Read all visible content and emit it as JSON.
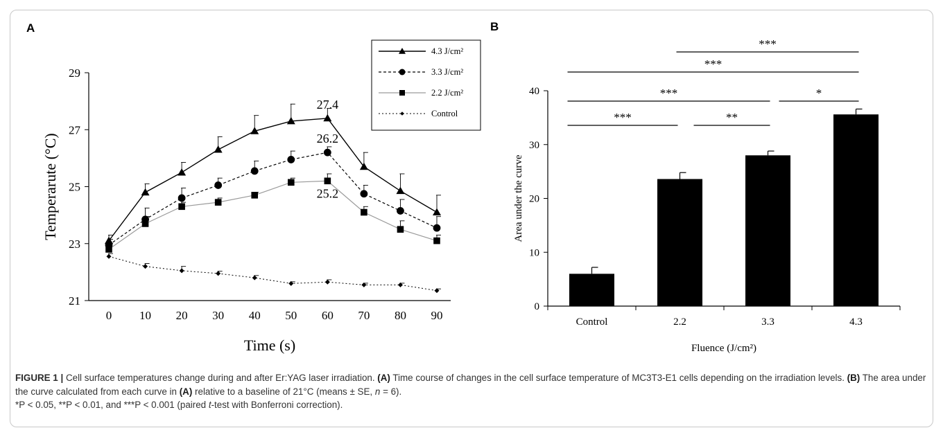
{
  "caption": {
    "label": "FIGURE 1 |",
    "line1": "Cell surface temperatures change during and after Er:YAG laser irradiation.",
    "a_ref": "(A)",
    "line1b": "Time course of changes in the cell surface temperature of MC3T3-E1",
    "line2a": "cells depending on the irradiation levels.",
    "b_ref": "(B)",
    "line2b": "The area under the curve calculated from each curve in",
    "a_ref2": "(A)",
    "line2c": "relative to a baseline of 21°C (means ± SE,",
    "n_label": "n",
    "n_value": "= 6).",
    "line3a": "*P < 0.05, **P < 0.01, and ***P < 0.001 (paired",
    "t_label": "t",
    "line3b": "-test with Bonferroni correction)."
  },
  "colors": {
    "ink": "#000000",
    "series_22": "#9a9a9a",
    "bar_fill": "#000000",
    "caption_text": "#333333",
    "frame": "#c8c8c8"
  },
  "chart_data": [
    {
      "panel": "A",
      "type": "line",
      "xlabel": "Time (s)",
      "ylabel": "Temperarute (°C)",
      "x": [
        0,
        10,
        20,
        30,
        40,
        50,
        60,
        70,
        80,
        90
      ],
      "xticks": [
        "0",
        "10",
        "20",
        "30",
        "40",
        "50",
        "60",
        "70",
        "80",
        "90"
      ],
      "ylim": [
        21,
        29
      ],
      "yticks": [
        "21",
        "23",
        "25",
        "27",
        "29"
      ],
      "legend_position": "top-right",
      "series": [
        {
          "name": "4.3 J/cm²",
          "marker": "triangle",
          "line": "solid",
          "values": [
            23.1,
            24.8,
            25.5,
            26.3,
            26.95,
            27.3,
            27.4,
            25.7,
            24.85,
            24.1
          ],
          "errors": [
            0.2,
            0.3,
            0.35,
            0.45,
            0.55,
            0.6,
            0.35,
            0.5,
            0.6,
            0.6
          ]
        },
        {
          "name": "3.3 J/cm²",
          "marker": "circle",
          "line": "dashed",
          "values": [
            22.95,
            23.85,
            24.6,
            25.05,
            25.55,
            25.95,
            26.2,
            24.75,
            24.15,
            23.55
          ],
          "errors": [
            0.2,
            0.4,
            0.35,
            0.25,
            0.35,
            0.3,
            0.2,
            0.3,
            0.4,
            0.4
          ]
        },
        {
          "name": "2.2 J/cm²",
          "marker": "square",
          "line": "solid-gray",
          "values": [
            22.8,
            23.7,
            24.3,
            24.45,
            24.7,
            25.15,
            25.2,
            24.1,
            23.5,
            23.1
          ],
          "errors": [
            0.2,
            0.25,
            0.15,
            0.15,
            0.1,
            0.15,
            0.25,
            0.2,
            0.3,
            0.2
          ]
        },
        {
          "name": "Control",
          "marker": "diamond",
          "line": "dotted",
          "values": [
            22.55,
            22.2,
            22.05,
            21.95,
            21.8,
            21.6,
            21.65,
            21.55,
            21.55,
            21.35
          ],
          "errors": [
            0.1,
            0.1,
            0.15,
            0.08,
            0.08,
            0.06,
            0.08,
            0.06,
            0.06,
            0.06
          ]
        }
      ],
      "annotations": [
        {
          "text": "27.4",
          "x": 60,
          "y": 27.4
        },
        {
          "text": "26.2",
          "x": 60,
          "y": 26.2
        },
        {
          "text": "25.2",
          "x": 60,
          "y": 25.2
        }
      ]
    },
    {
      "panel": "B",
      "type": "bar",
      "xlabel": "Fluence (J/cm²)",
      "ylabel": "Area under the curve",
      "categories": [
        "Control",
        "2.2",
        "3.3",
        "4.3"
      ],
      "values": [
        6.0,
        23.6,
        28.0,
        35.6
      ],
      "errors": [
        1.2,
        1.2,
        0.8,
        1.0
      ],
      "ylim": [
        0,
        40
      ],
      "yticks": [
        "0",
        "10",
        "20",
        "30",
        "40"
      ],
      "significance": [
        {
          "from": 1,
          "to": 3,
          "label": "***"
        },
        {
          "from": 0,
          "to": 3,
          "label": "***"
        },
        {
          "from": 0,
          "to": 2,
          "label": "***"
        },
        {
          "from": 2,
          "to": 3,
          "label": "*"
        },
        {
          "from": 0,
          "to": 1,
          "label": "***"
        },
        {
          "from": 1,
          "to": 2,
          "label": "**"
        }
      ]
    }
  ]
}
